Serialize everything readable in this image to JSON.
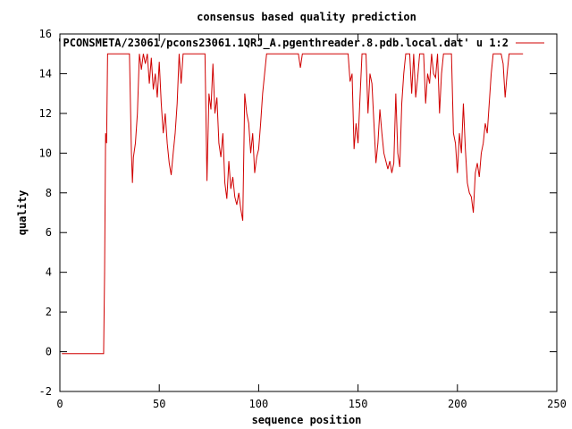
{
  "chart_data": {
    "type": "line",
    "title": "consensus based quality prediction",
    "xlabel": "sequence position",
    "ylabel": "quality",
    "xlim": [
      0,
      250
    ],
    "ylim": [
      -2,
      16
    ],
    "xticks": [
      0,
      50,
      100,
      150,
      200,
      250
    ],
    "yticks": [
      -2,
      0,
      2,
      4,
      6,
      8,
      10,
      12,
      14,
      16
    ],
    "grid": false,
    "legend_position": "top-right",
    "series": [
      {
        "name": "'PCONSMETA/23061/pcons23061.1QRJ_A.pgenthreader.8.pdb.local.dat' u 1:2",
        "color": "#d00000",
        "points": [
          [
            1,
            -0.1
          ],
          [
            22,
            -0.1
          ],
          [
            22.5,
            4.0
          ],
          [
            23,
            11.0
          ],
          [
            23.5,
            10.5
          ],
          [
            24,
            15.0
          ],
          [
            35,
            15.0
          ],
          [
            36,
            10.0
          ],
          [
            36.5,
            8.5
          ],
          [
            37,
            9.8
          ],
          [
            38,
            10.5
          ],
          [
            39,
            12.0
          ],
          [
            40,
            15.0
          ],
          [
            41,
            14.2
          ],
          [
            42,
            15.0
          ],
          [
            43,
            14.5
          ],
          [
            44,
            15.0
          ],
          [
            45,
            13.5
          ],
          [
            46,
            14.8
          ],
          [
            47,
            13.2
          ],
          [
            48,
            14.0
          ],
          [
            49,
            12.8
          ],
          [
            50,
            14.6
          ],
          [
            51,
            12.5
          ],
          [
            52,
            11.0
          ],
          [
            53,
            12.0
          ],
          [
            54,
            10.5
          ],
          [
            55,
            9.5
          ],
          [
            56,
            8.9
          ],
          [
            57,
            10.0
          ],
          [
            58,
            11.0
          ],
          [
            59,
            12.5
          ],
          [
            60,
            15.0
          ],
          [
            61,
            13.5
          ],
          [
            62,
            15.0
          ],
          [
            73,
            15.0
          ],
          [
            74,
            8.6
          ],
          [
            75,
            13.0
          ],
          [
            76,
            12.2
          ],
          [
            77,
            14.5
          ],
          [
            78,
            12.0
          ],
          [
            79,
            12.8
          ],
          [
            80,
            10.5
          ],
          [
            81,
            9.8
          ],
          [
            82,
            11.0
          ],
          [
            83,
            8.5
          ],
          [
            84,
            7.7
          ],
          [
            85,
            9.6
          ],
          [
            86,
            8.2
          ],
          [
            87,
            8.8
          ],
          [
            88,
            7.8
          ],
          [
            89,
            7.4
          ],
          [
            90,
            8.0
          ],
          [
            91,
            7.2
          ],
          [
            92,
            6.6
          ],
          [
            93,
            13.0
          ],
          [
            94,
            12.0
          ],
          [
            95,
            11.5
          ],
          [
            96,
            10.0
          ],
          [
            97,
            11.0
          ],
          [
            98,
            9.0
          ],
          [
            99,
            9.8
          ],
          [
            100,
            10.2
          ],
          [
            101,
            11.5
          ],
          [
            102,
            13.0
          ],
          [
            103,
            14.0
          ],
          [
            104,
            15.0
          ],
          [
            120,
            15.0
          ],
          [
            121,
            14.3
          ],
          [
            122,
            15.0
          ],
          [
            145,
            15.0
          ],
          [
            146,
            13.6
          ],
          [
            147,
            14.0
          ],
          [
            148,
            10.2
          ],
          [
            149,
            11.5
          ],
          [
            150,
            10.5
          ],
          [
            151,
            12.8
          ],
          [
            152,
            15.0
          ],
          [
            154,
            15.0
          ],
          [
            155,
            12.0
          ],
          [
            156,
            14.0
          ],
          [
            157,
            13.5
          ],
          [
            158,
            11.5
          ],
          [
            159,
            9.5
          ],
          [
            160,
            10.5
          ],
          [
            161,
            12.2
          ],
          [
            162,
            11.0
          ],
          [
            163,
            10.0
          ],
          [
            164,
            9.6
          ],
          [
            165,
            9.2
          ],
          [
            166,
            9.6
          ],
          [
            167,
            9.0
          ],
          [
            168,
            9.5
          ],
          [
            169,
            13.0
          ],
          [
            170,
            10.0
          ],
          [
            171,
            9.3
          ],
          [
            172,
            12.5
          ],
          [
            173,
            14.0
          ],
          [
            174,
            15.0
          ],
          [
            176,
            15.0
          ],
          [
            177,
            13.0
          ],
          [
            178,
            15.0
          ],
          [
            179,
            12.8
          ],
          [
            180,
            13.8
          ],
          [
            181,
            15.0
          ],
          [
            183,
            15.0
          ],
          [
            184,
            12.5
          ],
          [
            185,
            14.0
          ],
          [
            186,
            13.5
          ],
          [
            187,
            15.0
          ],
          [
            188,
            14.0
          ],
          [
            189,
            13.8
          ],
          [
            190,
            15.0
          ],
          [
            191,
            12.0
          ],
          [
            192,
            14.0
          ],
          [
            193,
            15.0
          ],
          [
            197,
            15.0
          ],
          [
            198,
            11.0
          ],
          [
            199,
            10.5
          ],
          [
            200,
            9.0
          ],
          [
            201,
            11.0
          ],
          [
            202,
            10.0
          ],
          [
            203,
            12.5
          ],
          [
            204,
            10.2
          ],
          [
            205,
            8.5
          ],
          [
            206,
            8.0
          ],
          [
            207,
            7.8
          ],
          [
            208,
            7.0
          ],
          [
            209,
            9.0
          ],
          [
            210,
            9.5
          ],
          [
            211,
            8.8
          ],
          [
            212,
            10.0
          ],
          [
            213,
            10.5
          ],
          [
            214,
            11.5
          ],
          [
            215,
            11.0
          ],
          [
            216,
            12.5
          ],
          [
            217,
            14.0
          ],
          [
            218,
            15.0
          ],
          [
            222,
            15.0
          ],
          [
            223,
            14.5
          ],
          [
            224,
            12.8
          ],
          [
            225,
            14.0
          ],
          [
            226,
            15.0
          ],
          [
            233,
            15.0
          ]
        ]
      }
    ]
  }
}
